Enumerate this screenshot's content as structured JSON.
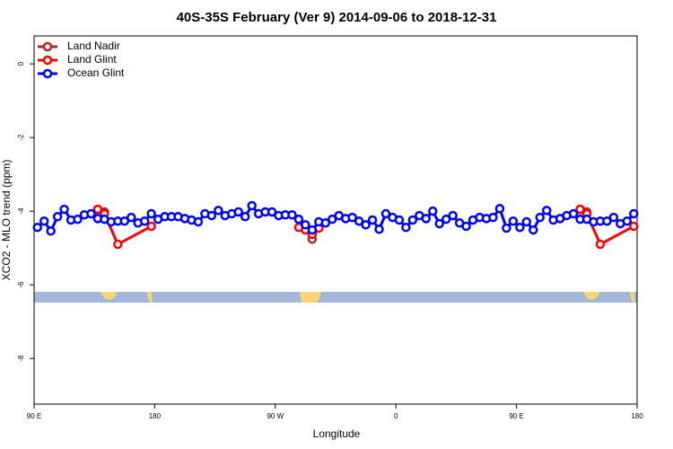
{
  "chart_data": {
    "type": "line",
    "title": "40S-35S February (Ver 9)   2014-09-06 to 2018-12-31",
    "x_label": "Longitude",
    "y_label": "XCO2 - MLO trend (ppm)",
    "xlim": [
      90,
      540
    ],
    "ylim": [
      -9.24,
      0.76
    ],
    "xticks": [
      {
        "value": 90,
        "label": "90 E"
      },
      180,
      {
        "value": 270,
        "label": "90 W"
      },
      {
        "value": 360,
        "label": "0"
      },
      {
        "value": 450,
        "label": "90 E"
      },
      {
        "value": 540,
        "label": "180"
      }
    ],
    "yticks": [
      0,
      -2,
      -4,
      -6,
      -8
    ],
    "legend": "top-left",
    "series": [
      {
        "name": "Land Nadir",
        "color": "#a52a2a",
        "x": [
          137.5,
          142.5,
          null,
          287.5,
          292.5,
          297.5,
          302.5,
          null,
          497.5,
          502.5
        ],
        "values": [
          -3.95,
          -4.02,
          null,
          -4.22,
          -4.41,
          -4.76,
          -4.44,
          null,
          -3.95,
          -4.02
        ]
      },
      {
        "name": "Land Glint",
        "color": "#ff0000",
        "x": [
          137.5,
          142.5,
          152.5,
          177.5,
          null,
          287.5,
          292.5,
          297.5,
          302.5,
          null,
          497.5,
          502.5,
          512.5,
          537.5
        ],
        "values": [
          -3.95,
          -4.07,
          -4.9,
          -4.41,
          null,
          -4.44,
          -4.51,
          -4.63,
          -4.46,
          null,
          -3.95,
          -4.07,
          -4.9,
          -4.41
        ]
      },
      {
        "name": "Ocean Glint",
        "color": "#0000ff",
        "x": [
          92.5,
          97.5,
          102.5,
          107.5,
          112.5,
          117.5,
          122.5,
          127.5,
          132.5,
          137.5,
          142.5,
          147.5,
          152.5,
          157.5,
          162.5,
          167.5,
          172.5,
          177.5,
          182.5,
          187.5,
          192.5,
          197.5,
          202.5,
          207.5,
          212.5,
          217.5,
          222.5,
          227.5,
          232.5,
          237.5,
          242.5,
          247.5,
          252.5,
          257.5,
          262.5,
          267.5,
          272.5,
          277.5,
          282.5,
          287.5,
          292.5,
          297.5,
          302.5,
          307.5,
          312.5,
          317.5,
          322.5,
          327.5,
          332.5,
          337.5,
          342.5,
          347.5,
          352.5,
          357.5,
          362.5,
          367.5,
          372.5,
          377.5,
          382.5,
          387.5,
          392.5,
          397.5,
          402.5,
          407.5,
          412.5,
          417.5,
          422.5,
          427.5,
          432.5,
          437.5,
          442.5,
          447.5,
          452.5,
          457.5,
          462.5,
          467.5,
          472.5,
          477.5,
          482.5,
          487.5,
          492.5,
          497.5,
          502.5,
          507.5,
          512.5,
          517.5,
          522.5,
          527.5,
          532.5,
          537.5
        ],
        "values": [
          -4.44,
          -4.27,
          -4.54,
          -4.15,
          -3.95,
          -4.24,
          -4.22,
          -4.1,
          -4.07,
          -4.2,
          -4.22,
          -4.29,
          -4.27,
          -4.27,
          -4.17,
          -4.32,
          -4.27,
          -4.07,
          -4.22,
          -4.15,
          -4.15,
          -4.15,
          -4.2,
          -4.24,
          -4.29,
          -4.07,
          -4.12,
          -3.98,
          -4.12,
          -4.07,
          -4.02,
          -4.15,
          -3.85,
          -4.07,
          -4.02,
          -4.02,
          -4.12,
          -4.1,
          -4.1,
          -4.22,
          -4.37,
          -4.51,
          -4.29,
          -4.32,
          -4.22,
          -4.12,
          -4.2,
          -4.17,
          -4.27,
          -4.37,
          -4.24,
          -4.49,
          -4.07,
          -4.17,
          -4.24,
          -4.44,
          -4.24,
          -4.12,
          -4.2,
          -4.0,
          -4.34,
          -4.22,
          -4.12,
          -4.32,
          -4.41,
          -4.24,
          -4.17,
          -4.2,
          -4.17,
          -3.93,
          -4.46,
          -4.27,
          -4.44,
          -4.29,
          -4.51,
          -4.17,
          -3.98,
          -4.24,
          -4.2,
          -4.12,
          -4.07,
          -4.22,
          -4.22,
          -4.29,
          -4.27,
          -4.27,
          -4.17,
          -4.34,
          -4.27,
          -4.07
        ]
      }
    ]
  }
}
